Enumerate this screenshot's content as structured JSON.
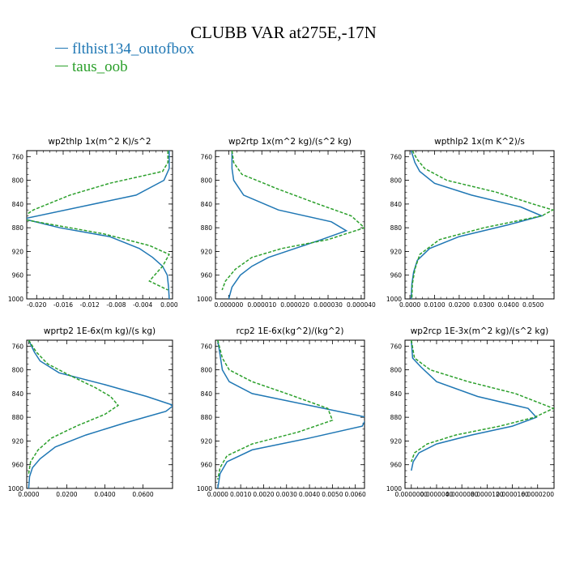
{
  "title": "CLUBB VAR at275E,-17N",
  "legend": [
    {
      "name": "flthist134_outofbox",
      "color": "#1f77b4"
    },
    {
      "name": "taus_oob",
      "color": "#2ca02c"
    }
  ],
  "chart_data": [
    {
      "type": "line",
      "title": "wp2thlp   1x(m^2 K)/s^2",
      "xlim": [
        -0.0215,
        0.0005
      ],
      "ylim": [
        1000,
        750
      ],
      "xticks": [
        "-0.020",
        "-0.016",
        "-0.012",
        "-0.008",
        "-0.004",
        "0.000"
      ],
      "xtick_values": [
        -0.02,
        -0.016,
        -0.012,
        -0.008,
        -0.004,
        0.0
      ],
      "yticks": [
        "760",
        "800",
        "840",
        "880",
        "920",
        "960",
        "1000"
      ],
      "series": [
        {
          "name": "flthist134_outofbox",
          "x": [
            0.0,
            0.0,
            -0.0008,
            -0.005,
            -0.022,
            -0.0165,
            -0.009,
            -0.0045,
            -0.0025,
            -0.001,
            -0.0003,
            -0.0001,
            0.0
          ],
          "y": [
            750,
            780,
            800,
            825,
            865,
            880,
            895,
            915,
            930,
            945,
            960,
            980,
            1000
          ]
        },
        {
          "name": "taus_oob",
          "x": [
            -0.0002,
            -0.0002,
            -0.001,
            -0.009,
            -0.015,
            -0.0205,
            -0.0225,
            -0.01,
            -0.003,
            0.0,
            -0.001,
            -0.003,
            -0.0002
          ],
          "y": [
            750,
            770,
            785,
            805,
            825,
            850,
            865,
            890,
            910,
            925,
            945,
            970,
            985
          ]
        }
      ]
    },
    {
      "type": "line",
      "title": "wp2rtp   1x(m^2 kg)/(s^2 kg)",
      "xlim": [
        -4e-06,
        4.1e-05
      ],
      "ylim": [
        1000,
        750
      ],
      "xticks": [
        "0.000000",
        "0.000010",
        "0.000020",
        "0.000030",
        "0.000040"
      ],
      "xtick_values": [
        0.0,
        1e-05,
        2e-05,
        3e-05,
        4e-05
      ],
      "yticks": [
        "760",
        "800",
        "840",
        "880",
        "920",
        "960",
        "1000"
      ],
      "series": [
        {
          "name": "flthist134_outofbox",
          "x": [
            1e-06,
            1e-06,
            1.5e-06,
            4.5e-06,
            1.5e-05,
            3.1e-05,
            3.55e-05,
            2.8e-05,
            2e-05,
            1.2e-05,
            7e-06,
            3.5e-06,
            1e-06,
            0.0
          ],
          "y": [
            750,
            780,
            800,
            825,
            850,
            870,
            885,
            900,
            915,
            930,
            945,
            960,
            980,
            1000
          ]
        },
        {
          "name": "taus_oob",
          "x": [
            1e-06,
            1.5e-06,
            4e-06,
            1.5e-05,
            2.7e-05,
            3.7e-05,
            4.1e-05,
            3e-05,
            1.6e-05,
            7e-06,
            2e-06,
            -1e-06,
            -2e-06
          ],
          "y": [
            750,
            770,
            790,
            815,
            840,
            860,
            880,
            900,
            915,
            930,
            950,
            970,
            985
          ]
        }
      ]
    },
    {
      "type": "line",
      "title": "wpthlp2   1x(m K^2)/s",
      "xlim": [
        -0.002,
        0.0585
      ],
      "ylim": [
        1000,
        750
      ],
      "xticks": [
        "0.0000",
        "0.0100",
        "0.0200",
        "0.0300",
        "0.0400",
        "0.0500"
      ],
      "xtick_values": [
        0.0,
        0.01,
        0.02,
        0.03,
        0.04,
        0.05
      ],
      "yticks": [
        "760",
        "800",
        "840",
        "880",
        "920",
        "960",
        "1000"
      ],
      "series": [
        {
          "name": "flthist134_outofbox",
          "x": [
            0.0005,
            0.002,
            0.004,
            0.01,
            0.025,
            0.045,
            0.0535,
            0.04,
            0.02,
            0.008,
            0.003,
            0.0015,
            0.0008,
            0.0005
          ],
          "y": [
            750,
            770,
            785,
            805,
            825,
            845,
            860,
            875,
            895,
            915,
            935,
            955,
            975,
            1000
          ]
        },
        {
          "name": "taus_oob",
          "x": [
            0.001,
            0.003,
            0.006,
            0.015,
            0.035,
            0.05,
            0.058,
            0.0535,
            0.03,
            0.012,
            0.004,
            0.002,
            0.001,
            0.0008
          ],
          "y": [
            750,
            765,
            780,
            800,
            820,
            840,
            850,
            860,
            880,
            900,
            925,
            950,
            975,
            1000
          ]
        }
      ]
    },
    {
      "type": "line",
      "title": "wprtp2   1E-6x(m kg)/(s kg)",
      "xlim": [
        -0.001,
        0.0755
      ],
      "ylim": [
        1000,
        750
      ],
      "xticks": [
        "0.0000",
        "0.0200",
        "0.0400",
        "0.0600"
      ],
      "xtick_values": [
        0.0,
        0.02,
        0.04,
        0.06
      ],
      "yticks": [
        "760",
        "800",
        "840",
        "880",
        "920",
        "960",
        "1000"
      ],
      "series": [
        {
          "name": "flthist134_outofbox",
          "x": [
            0.0,
            0.003,
            0.006,
            0.016,
            0.04,
            0.062,
            0.076,
            0.072,
            0.05,
            0.03,
            0.014,
            0.006,
            0.002,
            0.0005,
            0.0
          ],
          "y": [
            750,
            770,
            785,
            805,
            825,
            845,
            860,
            870,
            890,
            910,
            930,
            950,
            965,
            980,
            1000
          ]
        },
        {
          "name": "taus_oob",
          "x": [
            0.0,
            0.004,
            0.01,
            0.022,
            0.035,
            0.043,
            0.047,
            0.04,
            0.025,
            0.012,
            0.005,
            0.001,
            0.0
          ],
          "y": [
            750,
            770,
            790,
            810,
            830,
            845,
            860,
            875,
            895,
            915,
            935,
            955,
            975
          ]
        }
      ]
    },
    {
      "type": "line",
      "title": "rcp2   1E-6x(kg^2)/(kg^2)",
      "xlim": [
        -0.0001,
        0.0064
      ],
      "ylim": [
        1000,
        750
      ],
      "xticks": [
        "0.0000",
        "0.0010",
        "0.0020",
        "0.0030",
        "0.0040",
        "0.0050",
        "0.0060"
      ],
      "xtick_values": [
        0.0,
        0.001,
        0.002,
        0.003,
        0.004,
        0.005,
        0.006
      ],
      "yticks": [
        "760",
        "800",
        "840",
        "880",
        "920",
        "960",
        "1000"
      ],
      "series": [
        {
          "name": "flthist134_outofbox",
          "x": [
            0.0,
            0.0001,
            0.0002,
            0.0005,
            0.0015,
            0.004,
            0.0065,
            0.0063,
            0.004,
            0.0015,
            0.0004,
            0.0001,
            0.0
          ],
          "y": [
            750,
            775,
            800,
            820,
            840,
            860,
            880,
            895,
            915,
            935,
            955,
            975,
            1000
          ]
        },
        {
          "name": "taus_oob",
          "x": [
            0.0,
            0.0002,
            0.0005,
            0.0015,
            0.003,
            0.0048,
            0.005,
            0.0035,
            0.0015,
            0.0004,
            0.0001,
            0.0
          ],
          "y": [
            750,
            780,
            800,
            820,
            840,
            865,
            885,
            905,
            925,
            945,
            965,
            985
          ]
        }
      ]
    },
    {
      "type": "line",
      "title": "wp2rcp   1E-3x(m^2 kg)/(s^2 kg)",
      "xlim": [
        -1e-06,
        2.26e-05
      ],
      "ylim": [
        1000,
        750
      ],
      "xticks": [
        "0.0000000",
        "0.0000040",
        "0.0000080",
        "0.0000120",
        "0.0000160",
        "0.0000200"
      ],
      "xtick_values": [
        0.0,
        4e-06,
        8e-06,
        1.2e-05,
        1.6e-05,
        2e-05
      ],
      "yticks": [
        "760",
        "800",
        "840",
        "880",
        "920",
        "960",
        "1000"
      ],
      "series": [
        {
          "name": "flthist134_outofbox",
          "x": [
            0.0,
            2e-07,
            1.5e-06,
            4e-06,
            1.05e-05,
            1.85e-05,
            1.98e-05,
            1.6e-05,
            9.5e-06,
            4e-06,
            1.2e-06,
            3e-07,
            0.0
          ],
          "y": [
            750,
            780,
            795,
            820,
            845,
            865,
            880,
            895,
            910,
            925,
            940,
            955,
            970
          ]
        },
        {
          "name": "taus_oob",
          "x": [
            0.0,
            5e-07,
            3e-06,
            9e-06,
            1.65e-05,
            2.25e-05,
            1.95e-05,
            1.4e-05,
            7e-06,
            2.5e-06,
            5e-07,
            0.0
          ],
          "y": [
            750,
            780,
            800,
            820,
            840,
            865,
            880,
            895,
            910,
            925,
            940,
            955
          ]
        }
      ]
    }
  ]
}
